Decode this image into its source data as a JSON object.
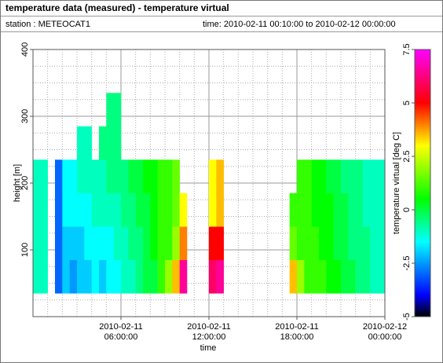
{
  "chart_data": {
    "type": "heatmap",
    "title": "temperature data (measured) - temperature virtual",
    "station": "station : METEOCAT1",
    "time_range": "time: 2010-02-11 00:10:00 to 2010-02-12 00:00:00",
    "xlabel": "time",
    "ylabel": "height [m]",
    "zlabel": "temperature virtual [deg C]",
    "xlim": [
      0,
      24
    ],
    "ylim": [
      0,
      400
    ],
    "zlim": [
      -5,
      7.5
    ],
    "xticks": [
      {
        "value": 6,
        "label": "2010-02-11\n06:00:00"
      },
      {
        "value": 12,
        "label": "2010-02-11\n12:00:00"
      },
      {
        "value": 18,
        "label": "2010-02-11\n18:00:00"
      },
      {
        "value": 24,
        "label": "2010-02-12\n00:00:00"
      }
    ],
    "yticks": [
      100,
      200,
      300,
      400
    ],
    "zticks": [
      -5,
      -2.5,
      0,
      2.5,
      5,
      7.5
    ],
    "xminorticks": [
      1,
      2,
      3,
      4,
      5,
      7,
      8,
      9,
      10,
      11,
      13,
      14,
      15,
      16,
      17,
      19,
      20,
      21,
      22,
      23
    ],
    "yminorticks": [
      25,
      50,
      75,
      125,
      150,
      175,
      225,
      250,
      275,
      325,
      350,
      375
    ],
    "grid": true,
    "colormap": [
      [
        -5,
        "#000000"
      ],
      [
        -4,
        "#0000ff"
      ],
      [
        -1.5,
        "#00ffff"
      ],
      [
        0.5,
        "#00ff00"
      ],
      [
        3,
        "#ffff00"
      ],
      [
        5,
        "#ff0000"
      ],
      [
        7.5,
        "#ff00ff"
      ]
    ],
    "x_edges": [
      0,
      0.5,
      1,
      1.5,
      2,
      2.5,
      3,
      3.5,
      4,
      4.5,
      5,
      5.5,
      6,
      6.5,
      7,
      7.5,
      8,
      8.5,
      9,
      9.5,
      10,
      10.5,
      11,
      11.5,
      12,
      12.5,
      13,
      13.5,
      14,
      14.5,
      15,
      15.5,
      16,
      16.5,
      17,
      17.5,
      18,
      18.5,
      19,
      19.5,
      20,
      20.5,
      21,
      21.5,
      22,
      22.5,
      23,
      23.5,
      24
    ],
    "y_edges": [
      35,
      85,
      135,
      185,
      235,
      285,
      335
    ],
    "z": [
      [
        -1,
        -1,
        -1,
        -1,
        null,
        null
      ],
      [
        -1,
        -1,
        -1,
        -1,
        null,
        null
      ],
      [
        null,
        null,
        null,
        null,
        null,
        null
      ],
      [
        -3,
        -3,
        -3,
        -3,
        null,
        null
      ],
      [
        -2,
        -2,
        -1.5,
        -1.5,
        null,
        null
      ],
      [
        -2.5,
        -2,
        -1.5,
        -1.5,
        null,
        null
      ],
      [
        -2,
        -2,
        -1.5,
        -1,
        -1,
        null
      ],
      [
        -2,
        -1.5,
        -1.5,
        -1,
        -1,
        null
      ],
      [
        -1.5,
        -1.5,
        -1,
        -1,
        null,
        null
      ],
      [
        -2,
        -1.5,
        -1,
        -1,
        -0.5,
        null
      ],
      [
        -1.5,
        -1.5,
        -1,
        -0.5,
        -0.5,
        -0.5
      ],
      [
        -1.5,
        -1,
        -1,
        -0.5,
        -0.5,
        -0.5
      ],
      [
        -1,
        -1,
        -0.5,
        -0.5,
        null,
        null
      ],
      [
        -1,
        -0.5,
        -0.5,
        0,
        null,
        null
      ],
      [
        -0.5,
        -0.5,
        0,
        0,
        null,
        null
      ],
      [
        0,
        0,
        0,
        0.5,
        null,
        null
      ],
      [
        0,
        0.5,
        0.5,
        0.5,
        null,
        null
      ],
      [
        1,
        1,
        1,
        1,
        null,
        null
      ],
      [
        2,
        1,
        1,
        1,
        null,
        null
      ],
      [
        3.5,
        2,
        1.5,
        1.5,
        null,
        null
      ],
      [
        6.5,
        4,
        3,
        null,
        null,
        null
      ],
      [
        null,
        null,
        null,
        null,
        null,
        null
      ],
      [
        null,
        null,
        null,
        null,
        null,
        null
      ],
      [
        null,
        null,
        null,
        null,
        null,
        null
      ],
      [
        6,
        5,
        3,
        3,
        null,
        null
      ],
      [
        6.5,
        5,
        3.5,
        3.5,
        null,
        null
      ],
      [
        null,
        null,
        null,
        null,
        null,
        null
      ],
      [
        null,
        null,
        null,
        null,
        null,
        null
      ],
      [
        null,
        null,
        null,
        null,
        null,
        null
      ],
      [
        null,
        null,
        null,
        null,
        null,
        null
      ],
      [
        null,
        null,
        null,
        null,
        null,
        null
      ],
      [
        null,
        null,
        null,
        null,
        null,
        null
      ],
      [
        null,
        null,
        null,
        null,
        null,
        null
      ],
      [
        null,
        null,
        null,
        null,
        null,
        null
      ],
      [
        null,
        null,
        null,
        null,
        null,
        null
      ],
      [
        3.5,
        1.5,
        1,
        null,
        null,
        null
      ],
      [
        2,
        1,
        1,
        1,
        null,
        null
      ],
      [
        1,
        1,
        1,
        1,
        null,
        null
      ],
      [
        1,
        1,
        0.5,
        0.5,
        null,
        null
      ],
      [
        1,
        0.5,
        0.5,
        0.5,
        null,
        null
      ],
      [
        0.5,
        0.5,
        0.5,
        0,
        null,
        null
      ],
      [
        0.5,
        0,
        0,
        0,
        null,
        null
      ],
      [
        0,
        0,
        0,
        -0.5,
        null,
        null
      ],
      [
        0,
        -0.5,
        -0.5,
        -0.5,
        null,
        null
      ],
      [
        -0.5,
        -0.5,
        -0.5,
        -0.5,
        null,
        null
      ],
      [
        -0.5,
        -0.5,
        -1,
        -1,
        null,
        null
      ],
      [
        -1,
        -1,
        -1,
        -1,
        null,
        null
      ],
      [
        -1,
        -1,
        -1,
        -1,
        null,
        null
      ]
    ]
  }
}
